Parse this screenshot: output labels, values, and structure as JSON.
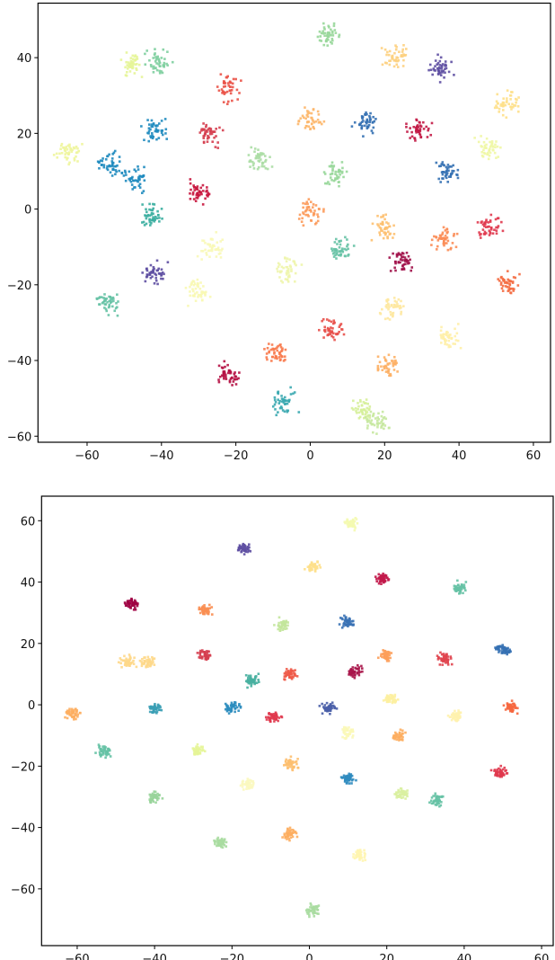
{
  "chart_data": [
    {
      "type": "scatter",
      "title": "",
      "xlabel": "",
      "ylabel": "",
      "xlim": [
        -73.2,
        64.6
      ],
      "ylim": [
        -61.6,
        54.4
      ],
      "xticks": [
        -60,
        -40,
        -20,
        0,
        20,
        40,
        60
      ],
      "yticks": [
        -60,
        -40,
        -20,
        0,
        20,
        40
      ],
      "grid": false,
      "legend": "none",
      "point_spread": 2.6,
      "points_per_cluster": 45,
      "clusters": [
        {
          "x": -48,
          "y": 38,
          "color": "#e6f598"
        },
        {
          "x": -41,
          "y": 39,
          "color": "#7fcfa0"
        },
        {
          "x": -22,
          "y": 32,
          "color": "#ea5348"
        },
        {
          "x": -42,
          "y": 21,
          "color": "#1f8bbf"
        },
        {
          "x": -27,
          "y": 20,
          "color": "#d53e4f"
        },
        {
          "x": -65,
          "y": 15,
          "color": "#eef59c"
        },
        {
          "x": -54,
          "y": 12,
          "color": "#1f8bbf"
        },
        {
          "x": -47,
          "y": 8,
          "color": "#1f8bbf"
        },
        {
          "x": -30,
          "y": 4,
          "color": "#c8163e"
        },
        {
          "x": -43,
          "y": -2,
          "color": "#3aaea0"
        },
        {
          "x": -14,
          "y": 13,
          "color": "#abdda4"
        },
        {
          "x": 5,
          "y": 46,
          "color": "#98d79a"
        },
        {
          "x": 23,
          "y": 40,
          "color": "#fdd07f"
        },
        {
          "x": 35,
          "y": 37,
          "color": "#5e4fa2"
        },
        {
          "x": 53,
          "y": 28,
          "color": "#fee08b"
        },
        {
          "x": 0,
          "y": 24,
          "color": "#fdb76b"
        },
        {
          "x": 15,
          "y": 23,
          "color": "#3470b2"
        },
        {
          "x": 29,
          "y": 21,
          "color": "#c21a45"
        },
        {
          "x": 48,
          "y": 16,
          "color": "#eff7a5"
        },
        {
          "x": 7,
          "y": 9,
          "color": "#98d79a"
        },
        {
          "x": 37,
          "y": 10,
          "color": "#3470b2"
        },
        {
          "x": 0,
          "y": -1,
          "color": "#fc9a5a"
        },
        {
          "x": 20,
          "y": -5,
          "color": "#fdc070"
        },
        {
          "x": 36,
          "y": -8,
          "color": "#fb8c55"
        },
        {
          "x": 48,
          "y": -4,
          "color": "#e0394e"
        },
        {
          "x": 8,
          "y": -10,
          "color": "#66c2a5"
        },
        {
          "x": 25,
          "y": -14,
          "color": "#a01048"
        },
        {
          "x": 53,
          "y": -20,
          "color": "#f46d43"
        },
        {
          "x": -27,
          "y": -10,
          "color": "#f8f8b8"
        },
        {
          "x": -42,
          "y": -17,
          "color": "#5e4fa2"
        },
        {
          "x": -30,
          "y": -22,
          "color": "#f8f8b4"
        },
        {
          "x": -6,
          "y": -16,
          "color": "#eef5ac"
        },
        {
          "x": -54,
          "y": -25,
          "color": "#66c2a5"
        },
        {
          "x": 6,
          "y": -32,
          "color": "#e8504a"
        },
        {
          "x": 22,
          "y": -26,
          "color": "#fee8a0"
        },
        {
          "x": 37,
          "y": -34,
          "color": "#fff0a8"
        },
        {
          "x": -9,
          "y": -38,
          "color": "#f87a4d"
        },
        {
          "x": 21,
          "y": -41,
          "color": "#fdb065"
        },
        {
          "x": -22,
          "y": -44,
          "color": "#b50f42"
        },
        {
          "x": -7,
          "y": -51,
          "color": "#3aa8b0"
        },
        {
          "x": 14,
          "y": -53,
          "color": "#d6f09a"
        },
        {
          "x": 18,
          "y": -56,
          "color": "#c6e8a0"
        }
      ]
    },
    {
      "type": "scatter",
      "title": "",
      "xlabel": "",
      "ylabel": "",
      "xlim": [
        -69.2,
        63.0
      ],
      "ylim": [
        -78.5,
        68.0
      ],
      "xticks": [
        -60,
        -40,
        -20,
        0,
        20,
        40,
        60
      ],
      "yticks": [
        -60,
        -40,
        -20,
        0,
        20,
        40,
        60
      ],
      "grid": false,
      "legend": "none",
      "point_spread": 1.5,
      "points_per_cluster": 45,
      "clusters": [
        {
          "x": -17,
          "y": 51,
          "color": "#5e4fa2"
        },
        {
          "x": -46,
          "y": 33,
          "color": "#9e0142"
        },
        {
          "x": -27,
          "y": 31,
          "color": "#f98e52"
        },
        {
          "x": -47,
          "y": 14,
          "color": "#fed88a"
        },
        {
          "x": -42,
          "y": 14,
          "color": "#fed88a"
        },
        {
          "x": -27,
          "y": 16,
          "color": "#d53e4f"
        },
        {
          "x": -15,
          "y": 8,
          "color": "#48b0a0"
        },
        {
          "x": -61,
          "y": -3,
          "color": "#fdae61"
        },
        {
          "x": -40,
          "y": -1,
          "color": "#3a9fb5"
        },
        {
          "x": -20,
          "y": -1,
          "color": "#2b8cbe"
        },
        {
          "x": -9,
          "y": -4,
          "color": "#e0394e"
        },
        {
          "x": 11,
          "y": 59,
          "color": "#f4f9b0"
        },
        {
          "x": 1,
          "y": 45,
          "color": "#fee08b"
        },
        {
          "x": 19,
          "y": 41,
          "color": "#c2184a"
        },
        {
          "x": 39,
          "y": 38,
          "color": "#66c2a5"
        },
        {
          "x": -7,
          "y": 26,
          "color": "#c3e69c"
        },
        {
          "x": 10,
          "y": 27,
          "color": "#3a72b5"
        },
        {
          "x": 20,
          "y": 16,
          "color": "#fd9e5a"
        },
        {
          "x": 35,
          "y": 15,
          "color": "#e0444e"
        },
        {
          "x": 50,
          "y": 18,
          "color": "#3470b2"
        },
        {
          "x": -5,
          "y": 10,
          "color": "#ee5a48"
        },
        {
          "x": 12,
          "y": 11,
          "color": "#a8154a"
        },
        {
          "x": 21,
          "y": 2,
          "color": "#fdf0a0"
        },
        {
          "x": 5,
          "y": -1,
          "color": "#4a5fa8"
        },
        {
          "x": 52,
          "y": -1,
          "color": "#f6673f"
        },
        {
          "x": 10,
          "y": -9,
          "color": "#fbf8b9"
        },
        {
          "x": 38,
          "y": -4,
          "color": "#fff2ae"
        },
        {
          "x": -5,
          "y": -19,
          "color": "#fdbf6f"
        },
        {
          "x": 23,
          "y": -10,
          "color": "#fdae61"
        },
        {
          "x": -29,
          "y": -15,
          "color": "#e6f598"
        },
        {
          "x": -53,
          "y": -15,
          "color": "#66c2a5"
        },
        {
          "x": -16,
          "y": -26,
          "color": "#fbf8c0"
        },
        {
          "x": 10,
          "y": -24,
          "color": "#2f8bbf"
        },
        {
          "x": 24,
          "y": -29,
          "color": "#d9f0a0"
        },
        {
          "x": 33,
          "y": -31,
          "color": "#66c2a5"
        },
        {
          "x": 49,
          "y": -22,
          "color": "#e0394e"
        },
        {
          "x": -40,
          "y": -30,
          "color": "#98d49a"
        },
        {
          "x": -23,
          "y": -45,
          "color": "#a8dca0"
        },
        {
          "x": -5,
          "y": -42,
          "color": "#fdae61"
        },
        {
          "x": 13,
          "y": -49,
          "color": "#fff5b0"
        },
        {
          "x": 1,
          "y": -67,
          "color": "#a8dca0"
        }
      ]
    }
  ]
}
